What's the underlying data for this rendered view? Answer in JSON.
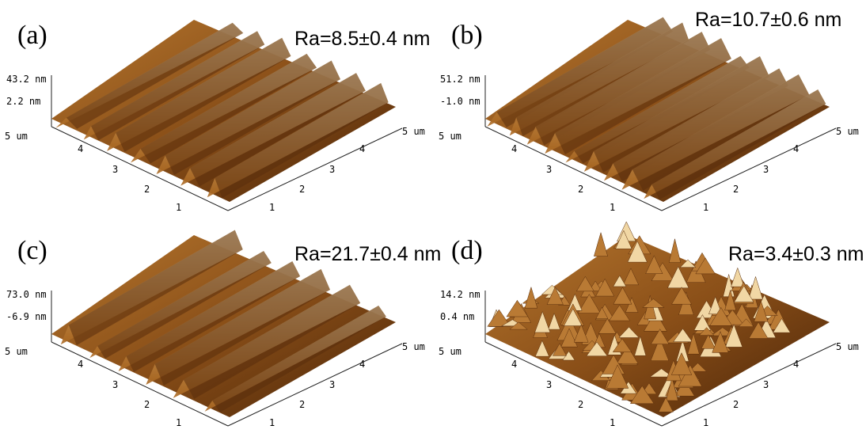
{
  "panels": [
    {
      "label": "(a)",
      "ra": "Ra=8.5±0.4 nm",
      "z_top": "43.2 nm",
      "z_bottom": "2.2 nm",
      "left_axis": [
        "5 um",
        "4",
        "3",
        "2",
        "1"
      ],
      "right_axis": [
        "1",
        "2",
        "3",
        "4",
        "5 um"
      ]
    },
    {
      "label": "(b)",
      "ra": "Ra=10.7±0.6 nm",
      "z_top": "51.2 nm",
      "z_bottom": "-1.0 nm",
      "left_axis": [
        "5 um",
        "4",
        "3",
        "2",
        "1"
      ],
      "right_axis": [
        "1",
        "2",
        "3",
        "4",
        "5 um"
      ]
    },
    {
      "label": "(c)",
      "ra": "Ra=21.7±0.4 nm",
      "z_top": "73.0 nm",
      "z_bottom": "-6.9 nm",
      "left_axis": [
        "5 um",
        "4",
        "3",
        "2",
        "1"
      ],
      "right_axis": [
        "1",
        "2",
        "3",
        "4",
        "5 um"
      ]
    },
    {
      "label": "(d)",
      "ra": "Ra=3.4±0.3 nm",
      "z_top": "14.2 nm",
      "z_bottom": "0.4 nm",
      "left_axis": [
        "5 um",
        "4",
        "3",
        "2",
        "1"
      ],
      "right_axis": [
        "1",
        "2",
        "3",
        "4",
        "5 um"
      ]
    }
  ]
}
